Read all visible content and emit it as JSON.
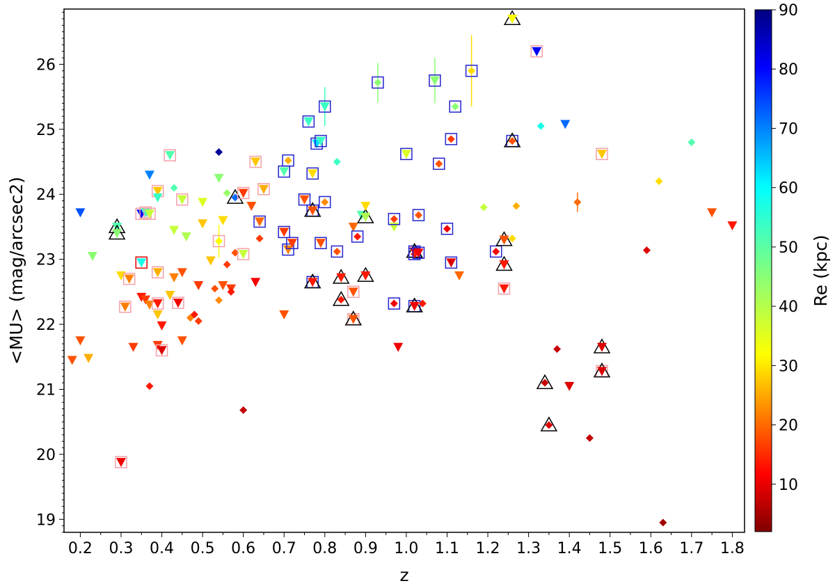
{
  "chart_data": {
    "type": "scatter",
    "title": "",
    "xlabel": "z",
    "ylabel": "<MU> (mag/arcsec2)",
    "xlim": [
      0.16,
      1.83
    ],
    "ylim": [
      18.8,
      26.85
    ],
    "xticks": [
      "0.2",
      "0.3",
      "0.4",
      "0.5",
      "0.6",
      "0.7",
      "0.8",
      "0.9",
      "1.0",
      "1.1",
      "1.2",
      "1.3",
      "1.4",
      "1.5",
      "1.6",
      "1.7",
      "1.8"
    ],
    "yticks": [
      "19",
      "20",
      "21",
      "22",
      "23",
      "24",
      "25",
      "26"
    ],
    "colorbar": {
      "label": "Re (kpc)",
      "range": [
        2,
        90
      ],
      "ticks": [
        "10",
        "20",
        "30",
        "40",
        "50",
        "60",
        "70",
        "80",
        "90"
      ],
      "colormap": "jet_reversed"
    },
    "markers": {
      "triangle_down": "upper limit",
      "diamond": "measurement",
      "open_square_blue": "highlighted (blue box)",
      "open_square_pink": "highlighted (pink box)",
      "open_triangle_black": "highlighted (black triangle)"
    },
    "points": [
      {
        "z": 0.18,
        "mu": 21.45,
        "re": 20,
        "m": "v"
      },
      {
        "z": 0.2,
        "mu": 21.75,
        "re": 20,
        "m": "v"
      },
      {
        "z": 0.22,
        "mu": 21.48,
        "re": 28,
        "m": "v"
      },
      {
        "z": 0.2,
        "mu": 23.72,
        "re": 72,
        "m": "v"
      },
      {
        "z": 0.23,
        "mu": 23.05,
        "re": 45,
        "m": "v"
      },
      {
        "z": 0.29,
        "mu": 23.5,
        "re": 50,
        "m": "v",
        "tri": true
      },
      {
        "z": 0.29,
        "mu": 23.4,
        "re": 45,
        "m": "v",
        "tri": true
      },
      {
        "z": 0.3,
        "mu": 22.75,
        "re": 32,
        "m": "v"
      },
      {
        "z": 0.3,
        "mu": 19.88,
        "re": 12,
        "m": "v",
        "sq": "pink"
      },
      {
        "z": 0.31,
        "mu": 22.27,
        "re": 24,
        "m": "v",
        "sq": "pink"
      },
      {
        "z": 0.32,
        "mu": 22.7,
        "re": 24,
        "m": "v",
        "sq": "pink"
      },
      {
        "z": 0.33,
        "mu": 21.65,
        "re": 18,
        "m": "v"
      },
      {
        "z": 0.35,
        "mu": 23.7,
        "re": 80,
        "m": "v",
        "sq": "pink"
      },
      {
        "z": 0.35,
        "mu": 22.95,
        "re": 55,
        "m": "v",
        "sq": "red"
      },
      {
        "z": 0.35,
        "mu": 22.42,
        "re": 15,
        "m": "v"
      },
      {
        "z": 0.36,
        "mu": 22.38,
        "re": 18,
        "m": "v"
      },
      {
        "z": 0.36,
        "mu": 23.72,
        "re": 52,
        "m": "v",
        "sq": "pink"
      },
      {
        "z": 0.37,
        "mu": 23.7,
        "re": 40,
        "m": "v",
        "sq": "pink"
      },
      {
        "z": 0.37,
        "mu": 24.3,
        "re": 68,
        "m": "v"
      },
      {
        "z": 0.37,
        "mu": 22.3,
        "re": 24,
        "m": "v"
      },
      {
        "z": 0.37,
        "mu": 21.05,
        "re": 15,
        "m": "d"
      },
      {
        "z": 0.39,
        "mu": 24.05,
        "re": 30,
        "m": "v",
        "sq": "pink"
      },
      {
        "z": 0.39,
        "mu": 23.95,
        "re": 52,
        "m": "v"
      },
      {
        "z": 0.39,
        "mu": 22.8,
        "re": 28,
        "m": "v",
        "sq": "pink"
      },
      {
        "z": 0.39,
        "mu": 22.32,
        "re": 15,
        "m": "v",
        "sq": "pink"
      },
      {
        "z": 0.39,
        "mu": 22.15,
        "re": 30,
        "m": "v"
      },
      {
        "z": 0.39,
        "mu": 21.68,
        "re": 18,
        "m": "v"
      },
      {
        "z": 0.4,
        "mu": 21.98,
        "re": 15,
        "m": "v"
      },
      {
        "z": 0.4,
        "mu": 21.6,
        "re": 10,
        "m": "v",
        "sq": "pink"
      },
      {
        "z": 0.42,
        "mu": 24.6,
        "re": 50,
        "m": "v",
        "sq": "pink"
      },
      {
        "z": 0.42,
        "mu": 22.45,
        "re": 30,
        "m": "v"
      },
      {
        "z": 0.43,
        "mu": 22.72,
        "re": 24,
        "m": "v"
      },
      {
        "z": 0.43,
        "mu": 24.1,
        "re": 50,
        "m": "d"
      },
      {
        "z": 0.43,
        "mu": 23.45,
        "re": 40,
        "m": "v"
      },
      {
        "z": 0.44,
        "mu": 22.33,
        "re": 12,
        "m": "v",
        "sq": "pink"
      },
      {
        "z": 0.45,
        "mu": 22.8,
        "re": 20,
        "m": "v"
      },
      {
        "z": 0.45,
        "mu": 21.75,
        "re": 20,
        "m": "v"
      },
      {
        "z": 0.45,
        "mu": 23.92,
        "re": 40,
        "m": "v",
        "sq": "pink"
      },
      {
        "z": 0.46,
        "mu": 23.35,
        "re": 42,
        "m": "v"
      },
      {
        "z": 0.47,
        "mu": 22.1,
        "re": 24,
        "m": "d"
      },
      {
        "z": 0.48,
        "mu": 22.15,
        "re": 15,
        "m": "d"
      },
      {
        "z": 0.49,
        "mu": 22.05,
        "re": 18,
        "m": "d"
      },
      {
        "z": 0.49,
        "mu": 22.6,
        "re": 18,
        "m": "v"
      },
      {
        "z": 0.5,
        "mu": 23.88,
        "re": 38,
        "m": "v"
      },
      {
        "z": 0.5,
        "mu": 23.55,
        "re": 30,
        "m": "v"
      },
      {
        "z": 0.52,
        "mu": 22.98,
        "re": 30,
        "m": "v"
      },
      {
        "z": 0.53,
        "mu": 22.55,
        "re": 20,
        "m": "d"
      },
      {
        "z": 0.54,
        "mu": 24.65,
        "re": 88,
        "m": "d"
      },
      {
        "z": 0.54,
        "mu": 24.25,
        "re": 45,
        "m": "v"
      },
      {
        "z": 0.54,
        "mu": 23.28,
        "re": 35,
        "m": "d",
        "sq": "pink",
        "err": 0.25
      },
      {
        "z": 0.54,
        "mu": 22.37,
        "re": 25,
        "m": "d"
      },
      {
        "z": 0.55,
        "mu": 23.6,
        "re": 32,
        "m": "v"
      },
      {
        "z": 0.55,
        "mu": 22.6,
        "re": 20,
        "m": "v"
      },
      {
        "z": 0.56,
        "mu": 22.92,
        "re": 18,
        "m": "d"
      },
      {
        "z": 0.56,
        "mu": 24.02,
        "re": 44,
        "m": "d"
      },
      {
        "z": 0.57,
        "mu": 22.55,
        "re": 18,
        "m": "v"
      },
      {
        "z": 0.57,
        "mu": 22.5,
        "re": 15,
        "m": "d"
      },
      {
        "z": 0.58,
        "mu": 23.1,
        "re": 20,
        "m": "d"
      },
      {
        "z": 0.58,
        "mu": 23.95,
        "re": 70,
        "m": "d",
        "tri": true
      },
      {
        "z": 0.6,
        "mu": 20.68,
        "re": 8,
        "m": "d"
      },
      {
        "z": 0.6,
        "mu": 23.08,
        "re": 40,
        "m": "v",
        "sq": "pink"
      },
      {
        "z": 0.6,
        "mu": 24.02,
        "re": 18,
        "m": "v",
        "sq": "pink"
      },
      {
        "z": 0.62,
        "mu": 23.82,
        "re": 20,
        "m": "v"
      },
      {
        "z": 0.63,
        "mu": 22.65,
        "re": 12,
        "m": "v"
      },
      {
        "z": 0.63,
        "mu": 24.5,
        "re": 30,
        "m": "v",
        "sq": "pink"
      },
      {
        "z": 0.64,
        "mu": 23.32,
        "re": 18,
        "m": "d"
      },
      {
        "z": 0.64,
        "mu": 23.58,
        "re": 22,
        "m": "v",
        "sq": "blue"
      },
      {
        "z": 0.65,
        "mu": 24.08,
        "re": 28,
        "m": "v",
        "sq": "pink"
      },
      {
        "z": 0.7,
        "mu": 22.15,
        "re": 20,
        "m": "v"
      },
      {
        "z": 0.7,
        "mu": 23.42,
        "re": 18,
        "m": "v",
        "sq": "blue"
      },
      {
        "z": 0.7,
        "mu": 24.35,
        "re": 50,
        "m": "v",
        "sq": "blue"
      },
      {
        "z": 0.71,
        "mu": 24.52,
        "re": 28,
        "m": "d",
        "sq": "blue"
      },
      {
        "z": 0.71,
        "mu": 23.15,
        "re": 24,
        "m": "v",
        "sq": "blue"
      },
      {
        "z": 0.72,
        "mu": 23.25,
        "re": 18,
        "m": "v",
        "sq": "blue"
      },
      {
        "z": 0.75,
        "mu": 23.92,
        "re": 20,
        "m": "v",
        "sq": "blue"
      },
      {
        "z": 0.76,
        "mu": 25.12,
        "re": 52,
        "m": "v",
        "sq": "blue"
      },
      {
        "z": 0.77,
        "mu": 24.32,
        "re": 32,
        "m": "v",
        "sq": "blue"
      },
      {
        "z": 0.77,
        "mu": 23.75,
        "re": 20,
        "m": "v",
        "sq": "blue",
        "tri": true
      },
      {
        "z": 0.77,
        "mu": 22.65,
        "re": 15,
        "m": "v",
        "sq": "blue",
        "tri": true
      },
      {
        "z": 0.78,
        "mu": 24.78,
        "re": 60,
        "m": "v",
        "sq": "blue"
      },
      {
        "z": 0.79,
        "mu": 24.82,
        "re": 52,
        "m": "v",
        "sq": "blue"
      },
      {
        "z": 0.79,
        "mu": 23.25,
        "re": 20,
        "m": "v",
        "sq": "blue"
      },
      {
        "z": 0.8,
        "mu": 23.88,
        "re": 25,
        "m": "d",
        "sq": "blue"
      },
      {
        "z": 0.8,
        "mu": 25.35,
        "re": 52,
        "m": "v",
        "sq": "blue",
        "err": 0.3
      },
      {
        "z": 0.83,
        "mu": 24.5,
        "re": 52,
        "m": "d"
      },
      {
        "z": 0.83,
        "mu": 23.12,
        "re": 20,
        "m": "d",
        "sq": "blue"
      },
      {
        "z": 0.84,
        "mu": 22.72,
        "re": 15,
        "m": "v",
        "tri": true
      },
      {
        "z": 0.84,
        "mu": 22.38,
        "re": 15,
        "m": "d",
        "tri": true
      },
      {
        "z": 0.87,
        "mu": 23.5,
        "re": 22,
        "m": "v"
      },
      {
        "z": 0.87,
        "mu": 22.5,
        "re": 20,
        "m": "v",
        "sq": "pink"
      },
      {
        "z": 0.87,
        "mu": 22.08,
        "re": 20,
        "m": "v",
        "sq": "pink",
        "tri": true
      },
      {
        "z": 0.88,
        "mu": 23.35,
        "re": 15,
        "m": "d",
        "sq": "blue"
      },
      {
        "z": 0.89,
        "mu": 23.68,
        "re": 50,
        "m": "v"
      },
      {
        "z": 0.9,
        "mu": 23.65,
        "re": 42,
        "m": "v",
        "tri": true
      },
      {
        "z": 0.9,
        "mu": 23.82,
        "re": 32,
        "m": "v"
      },
      {
        "z": 0.9,
        "mu": 22.75,
        "re": 15,
        "m": "v",
        "tri": true
      },
      {
        "z": 0.93,
        "mu": 25.72,
        "re": 45,
        "m": "d",
        "sq": "blue",
        "err": 0.3
      },
      {
        "z": 0.97,
        "mu": 23.5,
        "re": 40,
        "m": "v"
      },
      {
        "z": 0.97,
        "mu": 23.62,
        "re": 18,
        "m": "d",
        "sq": "blue"
      },
      {
        "z": 0.97,
        "mu": 22.32,
        "re": 12,
        "m": "d",
        "sq": "blue"
      },
      {
        "z": 0.98,
        "mu": 21.65,
        "re": 12,
        "m": "v"
      },
      {
        "z": 1.0,
        "mu": 24.62,
        "re": 38,
        "m": "v",
        "sq": "blue"
      },
      {
        "z": 1.02,
        "mu": 23.12,
        "re": 12,
        "m": "v",
        "sq": "blue",
        "tri": true
      },
      {
        "z": 1.02,
        "mu": 22.28,
        "re": 12,
        "m": "v",
        "sq": "blue",
        "tri": true
      },
      {
        "z": 1.02,
        "mu": 23.08,
        "re": 15,
        "m": "d",
        "sq": "blue"
      },
      {
        "z": 1.03,
        "mu": 23.68,
        "re": 20,
        "m": "d",
        "sq": "blue"
      },
      {
        "z": 1.03,
        "mu": 23.1,
        "re": 12,
        "m": "v",
        "sq": "blue"
      },
      {
        "z": 1.04,
        "mu": 22.32,
        "re": 15,
        "m": "d"
      },
      {
        "z": 1.07,
        "mu": 25.75,
        "re": 45,
        "m": "v",
        "sq": "blue",
        "err": 0.35
      },
      {
        "z": 1.08,
        "mu": 24.47,
        "re": 20,
        "m": "d",
        "sq": "blue"
      },
      {
        "z": 1.1,
        "mu": 23.47,
        "re": 12,
        "m": "d",
        "sq": "blue"
      },
      {
        "z": 1.11,
        "mu": 24.85,
        "re": 18,
        "m": "d",
        "sq": "blue"
      },
      {
        "z": 1.11,
        "mu": 22.95,
        "re": 10,
        "m": "v",
        "sq": "blue"
      },
      {
        "z": 1.12,
        "mu": 25.35,
        "re": 45,
        "m": "d",
        "sq": "blue"
      },
      {
        "z": 1.13,
        "mu": 22.75,
        "re": 22,
        "m": "v"
      },
      {
        "z": 1.16,
        "mu": 25.9,
        "re": 32,
        "m": "d",
        "sq": "blue",
        "err": 0.55
      },
      {
        "z": 1.19,
        "mu": 23.8,
        "re": 40,
        "m": "d"
      },
      {
        "z": 1.22,
        "mu": 23.12,
        "re": 12,
        "m": "d",
        "sq": "blue"
      },
      {
        "z": 1.24,
        "mu": 23.3,
        "re": 20,
        "m": "v",
        "tri": true
      },
      {
        "z": 1.24,
        "mu": 22.92,
        "re": 15,
        "m": "v",
        "tri": true
      },
      {
        "z": 1.24,
        "mu": 22.55,
        "re": 15,
        "m": "v",
        "sq": "pink"
      },
      {
        "z": 1.26,
        "mu": 26.7,
        "re": 35,
        "m": "v",
        "tri": true
      },
      {
        "z": 1.26,
        "mu": 24.82,
        "re": 20,
        "m": "d",
        "sq": "blue",
        "tri": true
      },
      {
        "z": 1.26,
        "mu": 23.32,
        "re": 32,
        "m": "d"
      },
      {
        "z": 1.27,
        "mu": 23.82,
        "re": 28,
        "m": "d"
      },
      {
        "z": 1.32,
        "mu": 26.2,
        "re": 80,
        "m": "v",
        "sq": "pink"
      },
      {
        "z": 1.33,
        "mu": 25.05,
        "re": 55,
        "m": "d"
      },
      {
        "z": 1.34,
        "mu": 21.1,
        "re": 8,
        "m": "d",
        "tri": true
      },
      {
        "z": 1.35,
        "mu": 20.45,
        "re": 10,
        "m": "d",
        "tri": true
      },
      {
        "z": 1.37,
        "mu": 21.62,
        "re": 8,
        "m": "d"
      },
      {
        "z": 1.39,
        "mu": 25.08,
        "re": 70,
        "m": "v"
      },
      {
        "z": 1.4,
        "mu": 21.05,
        "re": 10,
        "m": "v"
      },
      {
        "z": 1.42,
        "mu": 23.88,
        "re": 22,
        "m": "d",
        "err": 0.15
      },
      {
        "z": 1.45,
        "mu": 20.25,
        "re": 8,
        "m": "d"
      },
      {
        "z": 1.48,
        "mu": 24.62,
        "re": 30,
        "m": "v",
        "sq": "pink"
      },
      {
        "z": 1.48,
        "mu": 21.65,
        "re": 10,
        "m": "v",
        "tri": true
      },
      {
        "z": 1.48,
        "mu": 21.28,
        "re": 10,
        "m": "v",
        "sq": "pink",
        "tri": true
      },
      {
        "z": 1.59,
        "mu": 23.14,
        "re": 10,
        "m": "d"
      },
      {
        "z": 1.62,
        "mu": 24.2,
        "re": 32,
        "m": "d"
      },
      {
        "z": 1.63,
        "mu": 18.95,
        "re": 5,
        "m": "d"
      },
      {
        "z": 1.7,
        "mu": 24.8,
        "re": 50,
        "m": "d"
      },
      {
        "z": 1.75,
        "mu": 23.72,
        "re": 20,
        "m": "v"
      },
      {
        "z": 1.8,
        "mu": 23.52,
        "re": 15,
        "m": "v"
      }
    ]
  }
}
